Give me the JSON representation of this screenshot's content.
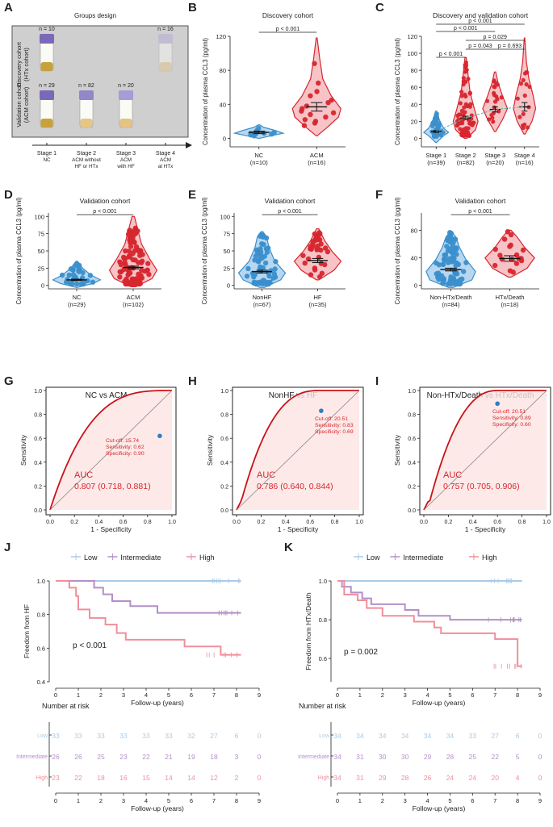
{
  "colors": {
    "nc": "#3a8fcb",
    "acm": "#d7262e",
    "low": "#a9cbe8",
    "intermediate": "#b48fc9",
    "high": "#ef8f9b",
    "roc": "#c8141a",
    "text": "#222222"
  },
  "panels": {
    "A": {
      "letter": "A",
      "title": "Groups design",
      "row_label_1": [
        "Discovery cohort",
        "(HTx cohort)"
      ],
      "row_label_2": [
        "Validation cohort",
        "(ACM cohort)"
      ],
      "tube_counts": [
        {
          "label": "n = 10"
        },
        {
          "label": "n = 16"
        },
        {
          "label": "n = 29"
        },
        {
          "label": "n = 82"
        },
        {
          "label": "n = 20"
        }
      ],
      "stages": [
        {
          "lines": [
            "Stage 1",
            "NC"
          ]
        },
        {
          "lines": [
            "Stage 2",
            "ACM without",
            "HF or HTx"
          ]
        },
        {
          "lines": [
            "Stage 3",
            "ACM",
            "with HF"
          ]
        },
        {
          "lines": [
            "Stage 4",
            "ACM",
            "at HTx"
          ]
        }
      ]
    },
    "B": {
      "letter": "B"
    },
    "C": {
      "letter": "C"
    },
    "D": {
      "letter": "D"
    },
    "E": {
      "letter": "E"
    },
    "F": {
      "letter": "F"
    },
    "G": {
      "letter": "G"
    },
    "H": {
      "letter": "H"
    },
    "I": {
      "letter": "I"
    },
    "J": {
      "letter": "J"
    },
    "K": {
      "letter": "K"
    }
  },
  "chart_data": [
    {
      "id": "B",
      "type": "violin",
      "title": "Discovery cohort",
      "ylabel": "Concentration of plasma CCL3 (pg/ml)",
      "ylim": [
        -10,
        120
      ],
      "yticks": [
        0,
        40,
        80,
        120
      ],
      "groups": [
        {
          "name": "NC",
          "n": "(n=10)",
          "mean": 7,
          "sem": 1.5,
          "points": [
            3,
            4,
            5,
            5,
            6,
            6,
            7,
            8,
            9,
            12
          ]
        },
        {
          "name": "ACM",
          "n": "(n=16)",
          "mean": 37,
          "sem": 5,
          "points": [
            15,
            18,
            20,
            22,
            25,
            28,
            30,
            32,
            35,
            38,
            42,
            45,
            50,
            55,
            65,
            88
          ]
        }
      ],
      "comparisons": [
        {
          "label": "p < 0.001",
          "from": 0,
          "to": 1
        }
      ]
    },
    {
      "id": "C",
      "type": "violin",
      "title": "Discovery and validation cohort",
      "ylabel": "Concentration of plasma CCL3 (pg/ml)",
      "ylim": [
        -10,
        120
      ],
      "yticks": [
        0,
        20,
        40,
        60,
        80,
        100,
        120
      ],
      "groups": [
        {
          "name": "Stage 1",
          "n": "(n=39)",
          "mean": 8,
          "sem": 1
        },
        {
          "name": "Stage 2",
          "n": "(n=82)",
          "mean": 24,
          "sem": 2
        },
        {
          "name": "Stage 3",
          "n": "(n=20)",
          "mean": 34,
          "sem": 3
        },
        {
          "name": "Stage 4",
          "n": "(n=16)",
          "mean": 37,
          "sem": 5
        }
      ],
      "comparisons": [
        {
          "label": "p < 0.001",
          "from": 0,
          "to": 1
        },
        {
          "label": "p = 0.043",
          "from": 1,
          "to": 2
        },
        {
          "label": "p = 0.693",
          "from": 2,
          "to": 3
        },
        {
          "label": "p = 0.029",
          "from": 1,
          "to": 3
        },
        {
          "label": "p < 0.001",
          "from": 0,
          "to": 2
        },
        {
          "label": "p < 0.001",
          "from": 0,
          "to": 3
        }
      ]
    },
    {
      "id": "D",
      "type": "violin",
      "title": "Validation cohort",
      "ylabel": "Concentration of plasma CCL3 (pg/ml)",
      "ylim": [
        -5,
        105
      ],
      "yticks": [
        0,
        25,
        50,
        75,
        100
      ],
      "groups": [
        {
          "name": "NC",
          "n": "(n=29)",
          "mean": 8,
          "sem": 1
        },
        {
          "name": "ACM",
          "n": "(n=102)",
          "mean": 26,
          "sem": 2
        }
      ],
      "comparisons": [
        {
          "label": "p < 0.001",
          "from": 0,
          "to": 1
        }
      ]
    },
    {
      "id": "E",
      "type": "violin",
      "title": "Validation cohort",
      "ylabel": "Concentration of plasma CCL3 (pg/ml)",
      "ylim": [
        -5,
        105
      ],
      "yticks": [
        0,
        25,
        50,
        75,
        100
      ],
      "groups": [
        {
          "name": "NonHF",
          "n": "(n=67)",
          "mean": 20,
          "sem": 2
        },
        {
          "name": "HF",
          "n": "(n=35)",
          "mean": 36,
          "sem": 3
        }
      ],
      "comparisons": [
        {
          "label": "p < 0.001",
          "from": 0,
          "to": 1
        }
      ]
    },
    {
      "id": "F",
      "type": "violin",
      "title": "Validation cohort",
      "ylabel": "Concentration of plasma CCL3 (pg/ml)",
      "ylim": [
        -5,
        105
      ],
      "yticks": [
        0,
        40,
        80
      ],
      "groups": [
        {
          "name": "Non-HTx/Death",
          "n": "(n=84)",
          "mean": 23,
          "sem": 2
        },
        {
          "name": "HTx/Death",
          "n": "(n=18)",
          "mean": 39,
          "sem": 4
        }
      ],
      "comparisons": [
        {
          "label": "p < 0.001",
          "from": 0,
          "to": 1
        }
      ]
    },
    {
      "id": "G",
      "type": "roc",
      "title": "NC vs ACM",
      "xlabel": "1 - Specificity",
      "ylabel": "Sensitivity",
      "shape": 0.12,
      "auc_label": "AUC",
      "auc_value": "0.807 (0.718, 0.881)",
      "point": {
        "fpr": 0.9,
        "tpr": 0.62
      },
      "cutoff_lines": [
        "Cut-off: 15.74",
        "Sensitivity: 0.62",
        "Specificity: 0.90"
      ],
      "ticks": [
        "0.0",
        "0.2",
        "0.4",
        "0.6",
        "0.8",
        "1.0"
      ]
    },
    {
      "id": "H",
      "type": "roc",
      "title": "NonHF vs HF",
      "xlabel": "1 - Specificity",
      "ylabel": "Sensitivity",
      "shape": 0.45,
      "auc_label": "AUC",
      "auc_value": "0.786 (0.640, 0.844)",
      "point": {
        "fpr": 0.69,
        "tpr": 0.83
      },
      "cutoff_lines": [
        "Cut-off: 20.51",
        "Sensitivity: 0.83",
        "Specificity: 0.69"
      ],
      "ticks": [
        "0.0",
        "0.2",
        "0.4",
        "0.6",
        "0.8",
        "1.0"
      ]
    },
    {
      "id": "I",
      "type": "roc",
      "title": "Non-HTx/Death vs HTx/Death",
      "xlabel": "1 - Specificity",
      "ylabel": "Sensitivity",
      "shape": 0.6,
      "auc_label": "AUC",
      "auc_value": "0.757 (0.705, 0.906)",
      "point": {
        "fpr": 0.6,
        "tpr": 0.89
      },
      "cutoff_lines": [
        "Cut-off: 20.51",
        "Sensitivity: 0.89",
        "Specificity: 0.60"
      ],
      "ticks": [
        "0.0",
        "0.2",
        "0.4",
        "0.6",
        "0.8",
        "1.0"
      ]
    },
    {
      "id": "J",
      "type": "km",
      "ylabel": "Freedom from HF",
      "xlabel": "Follow-up (years)",
      "pvalue": "p < 0.001",
      "legend": [
        "Low",
        "Intermediate",
        "High"
      ],
      "yticks": [
        "0.4",
        "0.6",
        "0.8",
        "1.0"
      ],
      "xticks": [
        "0",
        "1",
        "2",
        "3",
        "4",
        "5",
        "6",
        "7",
        "8",
        "9"
      ],
      "curves": [
        {
          "name": "Low",
          "steps": [
            [
              0,
              1.0
            ],
            [
              8.2,
              1.0
            ]
          ]
        },
        {
          "name": "Intermediate",
          "steps": [
            [
              0,
              1.0
            ],
            [
              1.7,
              1.0
            ],
            [
              1.7,
              0.96
            ],
            [
              2.1,
              0.96
            ],
            [
              2.1,
              0.92
            ],
            [
              2.5,
              0.92
            ],
            [
              2.5,
              0.88
            ],
            [
              3.3,
              0.88
            ],
            [
              3.3,
              0.85
            ],
            [
              4.5,
              0.85
            ],
            [
              4.5,
              0.81
            ],
            [
              8.2,
              0.81
            ]
          ]
        },
        {
          "name": "High",
          "steps": [
            [
              0,
              1.0
            ],
            [
              0.6,
              1.0
            ],
            [
              0.6,
              0.96
            ],
            [
              0.9,
              0.96
            ],
            [
              0.9,
              0.91
            ],
            [
              1.0,
              0.91
            ],
            [
              1.0,
              0.83
            ],
            [
              1.5,
              0.83
            ],
            [
              1.5,
              0.78
            ],
            [
              2.2,
              0.78
            ],
            [
              2.2,
              0.74
            ],
            [
              2.7,
              0.74
            ],
            [
              2.7,
              0.69
            ],
            [
              3.1,
              0.69
            ],
            [
              3.1,
              0.65
            ],
            [
              5.7,
              0.65
            ],
            [
              5.7,
              0.61
            ],
            [
              7.3,
              0.61
            ],
            [
              7.3,
              0.56
            ],
            [
              8.2,
              0.56
            ]
          ]
        }
      ],
      "risk_title": "Number at risk",
      "risk": [
        {
          "label": "Low",
          "values": [
            33,
            33,
            33,
            33,
            33,
            33,
            32,
            27,
            6,
            0
          ]
        },
        {
          "label": "Intermediate",
          "values": [
            26,
            26,
            25,
            23,
            22,
            21,
            19,
            18,
            3,
            0
          ]
        },
        {
          "label": "High",
          "values": [
            23,
            22,
            18,
            16,
            15,
            14,
            14,
            12,
            2,
            0
          ]
        }
      ]
    },
    {
      "id": "K",
      "type": "km",
      "ylabel": "Freedom from HTx/Death",
      "xlabel": "Follow-up (years)",
      "pvalue": "p = 0.002",
      "legend": [
        "Low",
        "Intermediate",
        "High"
      ],
      "yticks": [
        "0.6",
        "0.8",
        "1.0"
      ],
      "xticks": [
        "0",
        "1",
        "2",
        "3",
        "4",
        "5",
        "6",
        "7",
        "8",
        "9"
      ],
      "curves": [
        {
          "name": "Low",
          "steps": [
            [
              0,
              1.0
            ],
            [
              8.2,
              1.0
            ]
          ]
        },
        {
          "name": "Intermediate",
          "steps": [
            [
              0,
              1.0
            ],
            [
              0.2,
              1.0
            ],
            [
              0.2,
              0.97
            ],
            [
              0.6,
              0.97
            ],
            [
              0.6,
              0.94
            ],
            [
              1.1,
              0.94
            ],
            [
              1.1,
              0.91
            ],
            [
              1.5,
              0.91
            ],
            [
              1.5,
              0.88
            ],
            [
              3.0,
              0.88
            ],
            [
              3.0,
              0.85
            ],
            [
              3.6,
              0.85
            ],
            [
              3.6,
              0.82
            ],
            [
              5.0,
              0.82
            ],
            [
              5.0,
              0.8
            ],
            [
              8.2,
              0.8
            ]
          ]
        },
        {
          "name": "High",
          "steps": [
            [
              0,
              1.0
            ],
            [
              0.3,
              1.0
            ],
            [
              0.3,
              0.93
            ],
            [
              0.9,
              0.93
            ],
            [
              0.9,
              0.9
            ],
            [
              1.3,
              0.9
            ],
            [
              1.3,
              0.86
            ],
            [
              2.0,
              0.86
            ],
            [
              2.0,
              0.82
            ],
            [
              3.4,
              0.82
            ],
            [
              3.4,
              0.79
            ],
            [
              4.3,
              0.79
            ],
            [
              4.3,
              0.76
            ],
            [
              4.6,
              0.76
            ],
            [
              4.6,
              0.73
            ],
            [
              7.0,
              0.73
            ],
            [
              7.0,
              0.7
            ],
            [
              8.0,
              0.7
            ],
            [
              8.0,
              0.56
            ],
            [
              8.2,
              0.56
            ]
          ]
        }
      ],
      "risk_title": "Number at risk",
      "risk": [
        {
          "label": "Low",
          "values": [
            34,
            34,
            34,
            34,
            34,
            34,
            33,
            27,
            6,
            0
          ]
        },
        {
          "label": "Intermediate",
          "values": [
            34,
            31,
            30,
            30,
            29,
            28,
            25,
            22,
            5,
            0
          ]
        },
        {
          "label": "High",
          "values": [
            34,
            31,
            29,
            28,
            26,
            24,
            24,
            20,
            4,
            0
          ]
        }
      ]
    }
  ]
}
